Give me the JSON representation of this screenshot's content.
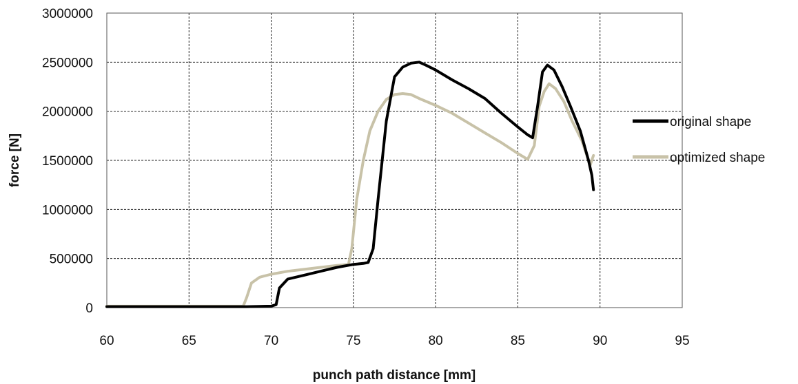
{
  "chart_data": {
    "type": "line",
    "title": "",
    "xlabel": "punch path distance [mm]",
    "ylabel": "force [N]",
    "xlim": [
      60,
      95
    ],
    "ylim": [
      0,
      3000000
    ],
    "xticks": [
      60,
      65,
      70,
      75,
      80,
      85,
      90,
      95
    ],
    "yticks": [
      0,
      500000,
      1000000,
      1500000,
      2000000,
      2500000,
      3000000
    ],
    "xtick_labels": [
      "60",
      "65",
      "70",
      "75",
      "80",
      "85",
      "90",
      "95"
    ],
    "ytick_labels": [
      "0",
      "500000",
      "1000000",
      "1500000",
      "2000000",
      "2500000",
      "3000000"
    ],
    "grid": true,
    "legend_position": "right",
    "series": [
      {
        "name": "original shape",
        "color": "#000000",
        "x": [
          60,
          68.5,
          70,
          70.3,
          70.5,
          71,
          72,
          73,
          74,
          75,
          75.6,
          75.9,
          76.2,
          76.5,
          77,
          77.5,
          78,
          78.5,
          79,
          79.4,
          80,
          81,
          82,
          83,
          84,
          85,
          85.6,
          85.9,
          86.2,
          86.5,
          86.8,
          87.2,
          87.7,
          88.2,
          88.8,
          89.3,
          89.5,
          89.6
        ],
        "y": [
          10000,
          10000,
          15000,
          30000,
          200000,
          290000,
          330000,
          370000,
          410000,
          440000,
          450000,
          460000,
          600000,
          1100000,
          1900000,
          2350000,
          2450000,
          2490000,
          2500000,
          2470000,
          2420000,
          2320000,
          2230000,
          2130000,
          1980000,
          1840000,
          1760000,
          1730000,
          2050000,
          2400000,
          2470000,
          2420000,
          2250000,
          2050000,
          1800000,
          1500000,
          1350000,
          1200000
        ]
      },
      {
        "name": "optimized shape",
        "color": "#c8c2a8",
        "x": [
          60,
          68.3,
          68.5,
          68.8,
          69.3,
          70,
          71,
          72,
          73,
          74,
          74.7,
          74.9,
          75.2,
          75.6,
          76,
          76.5,
          77,
          77.5,
          78,
          78.5,
          79,
          80,
          81,
          82,
          83,
          84,
          85,
          85.6,
          86,
          86.3,
          86.6,
          86.9,
          87.3,
          87.8,
          88.3,
          88.9,
          89.4,
          89.6
        ],
        "y": [
          15000,
          15000,
          100000,
          250000,
          310000,
          340000,
          370000,
          390000,
          410000,
          430000,
          440000,
          600000,
          1100000,
          1500000,
          1800000,
          2000000,
          2120000,
          2170000,
          2180000,
          2170000,
          2130000,
          2060000,
          1980000,
          1880000,
          1780000,
          1680000,
          1570000,
          1510000,
          1650000,
          2050000,
          2200000,
          2280000,
          2230000,
          2100000,
          1900000,
          1700000,
          1450000,
          1550000
        ]
      }
    ]
  }
}
